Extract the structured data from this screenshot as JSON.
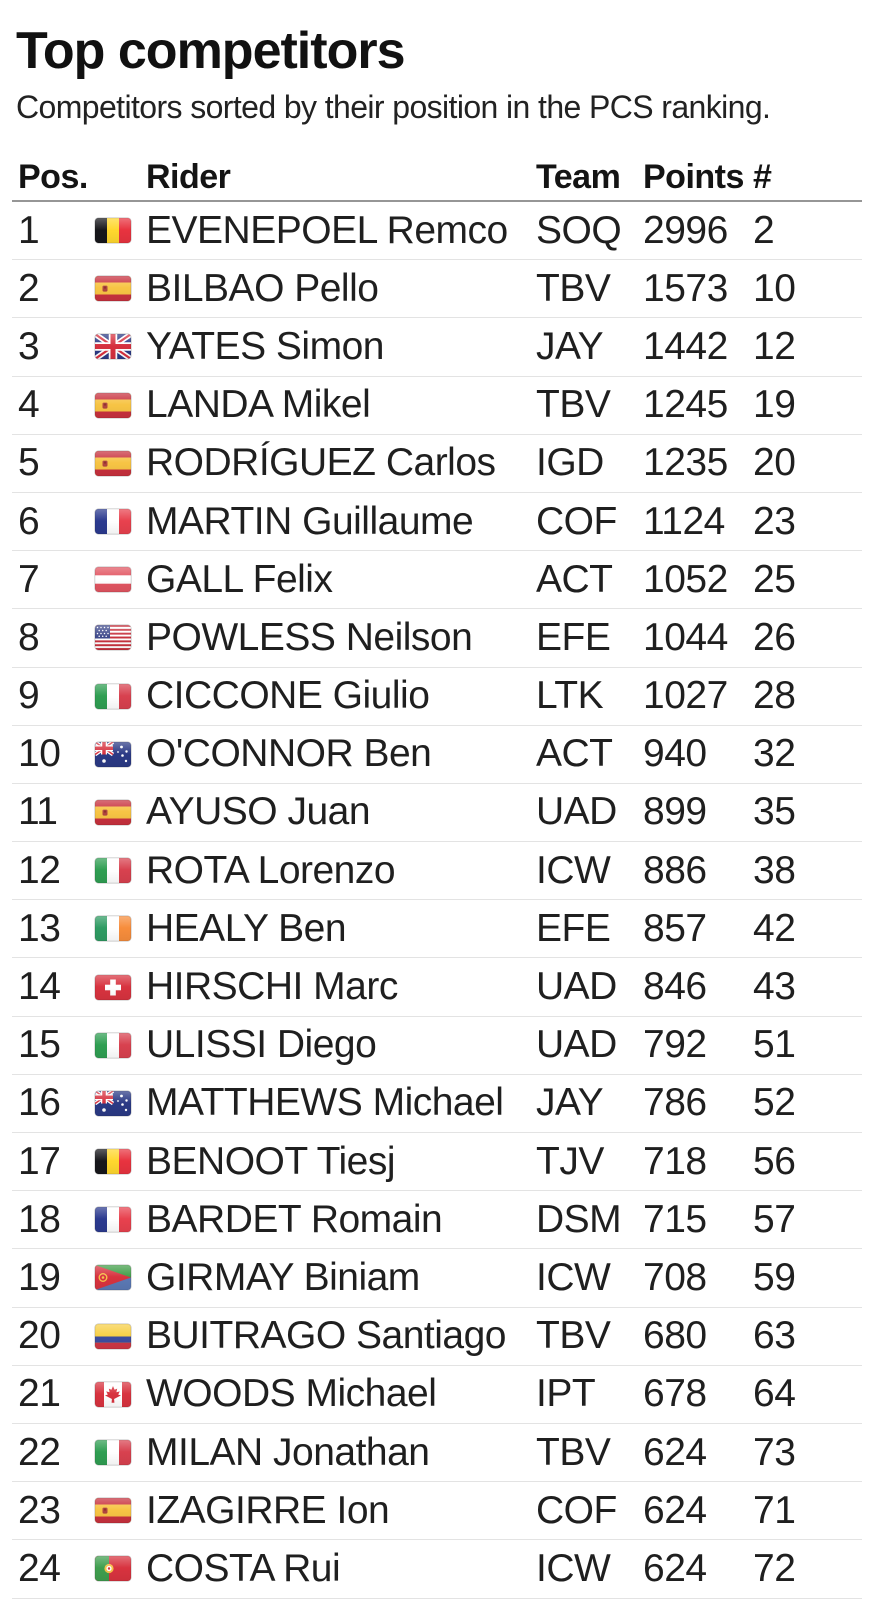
{
  "page": {
    "title": "Top competitors",
    "subtitle": "Competitors sorted by their position in the PCS ranking."
  },
  "colors": {
    "text": "#1f1f1f",
    "header_divider": "#969696",
    "row_divider": "#e3e3e3",
    "background": "#ffffff"
  },
  "table": {
    "columns": {
      "pos": "Pos.",
      "rider": "Rider",
      "team": "Team",
      "points": "Points",
      "rank": "#"
    },
    "rows": [
      {
        "pos": "1",
        "country": "Belgium",
        "cc": "be",
        "rider": "EVENEPOEL Remco",
        "team": "SOQ",
        "points": "2996",
        "rank": "2"
      },
      {
        "pos": "2",
        "country": "Spain",
        "cc": "es",
        "rider": "BILBAO Pello",
        "team": "TBV",
        "points": "1573",
        "rank": "10"
      },
      {
        "pos": "3",
        "country": "Great Britain",
        "cc": "gb",
        "rider": "YATES Simon",
        "team": "JAY",
        "points": "1442",
        "rank": "12"
      },
      {
        "pos": "4",
        "country": "Spain",
        "cc": "es",
        "rider": "LANDA Mikel",
        "team": "TBV",
        "points": "1245",
        "rank": "19"
      },
      {
        "pos": "5",
        "country": "Spain",
        "cc": "es",
        "rider": "RODRÍGUEZ Carlos",
        "team": "IGD",
        "points": "1235",
        "rank": "20"
      },
      {
        "pos": "6",
        "country": "France",
        "cc": "fr",
        "rider": "MARTIN Guillaume",
        "team": "COF",
        "points": "1124",
        "rank": "23"
      },
      {
        "pos": "7",
        "country": "Austria",
        "cc": "at",
        "rider": "GALL Felix",
        "team": "ACT",
        "points": "1052",
        "rank": "25"
      },
      {
        "pos": "8",
        "country": "United States",
        "cc": "us",
        "rider": "POWLESS Neilson",
        "team": "EFE",
        "points": "1044",
        "rank": "26"
      },
      {
        "pos": "9",
        "country": "Italy",
        "cc": "it",
        "rider": "CICCONE Giulio",
        "team": "LTK",
        "points": "1027",
        "rank": "28"
      },
      {
        "pos": "10",
        "country": "Australia",
        "cc": "au",
        "rider": "O'CONNOR Ben",
        "team": "ACT",
        "points": "940",
        "rank": "32"
      },
      {
        "pos": "11",
        "country": "Spain",
        "cc": "es",
        "rider": "AYUSO Juan",
        "team": "UAD",
        "points": "899",
        "rank": "35"
      },
      {
        "pos": "12",
        "country": "Italy",
        "cc": "it",
        "rider": "ROTA Lorenzo",
        "team": "ICW",
        "points": "886",
        "rank": "38"
      },
      {
        "pos": "13",
        "country": "Ireland",
        "cc": "ie",
        "rider": "HEALY Ben",
        "team": "EFE",
        "points": "857",
        "rank": "42"
      },
      {
        "pos": "14",
        "country": "Switzerland",
        "cc": "ch",
        "rider": "HIRSCHI Marc",
        "team": "UAD",
        "points": "846",
        "rank": "43"
      },
      {
        "pos": "15",
        "country": "Italy",
        "cc": "it",
        "rider": "ULISSI Diego",
        "team": "UAD",
        "points": "792",
        "rank": "51"
      },
      {
        "pos": "16",
        "country": "Australia",
        "cc": "au",
        "rider": "MATTHEWS Michael",
        "team": "JAY",
        "points": "786",
        "rank": "52"
      },
      {
        "pos": "17",
        "country": "Belgium",
        "cc": "be",
        "rider": "BENOOT Tiesj",
        "team": "TJV",
        "points": "718",
        "rank": "56"
      },
      {
        "pos": "18",
        "country": "France",
        "cc": "fr",
        "rider": "BARDET Romain",
        "team": "DSM",
        "points": "715",
        "rank": "57"
      },
      {
        "pos": "19",
        "country": "Eritrea",
        "cc": "er",
        "rider": "GIRMAY Biniam",
        "team": "ICW",
        "points": "708",
        "rank": "59"
      },
      {
        "pos": "20",
        "country": "Colombia",
        "cc": "co",
        "rider": "BUITRAGO Santiago",
        "team": "TBV",
        "points": "680",
        "rank": "63"
      },
      {
        "pos": "21",
        "country": "Canada",
        "cc": "ca",
        "rider": "WOODS Michael",
        "team": "IPT",
        "points": "678",
        "rank": "64"
      },
      {
        "pos": "22",
        "country": "Italy",
        "cc": "it",
        "rider": "MILAN Jonathan",
        "team": "TBV",
        "points": "624",
        "rank": "73"
      },
      {
        "pos": "23",
        "country": "Spain",
        "cc": "es",
        "rider": "IZAGIRRE Ion",
        "team": "COF",
        "points": "624",
        "rank": "71"
      },
      {
        "pos": "24",
        "country": "Portugal",
        "cc": "pt",
        "rider": "COSTA Rui",
        "team": "ICW",
        "points": "624",
        "rank": "72"
      }
    ]
  }
}
